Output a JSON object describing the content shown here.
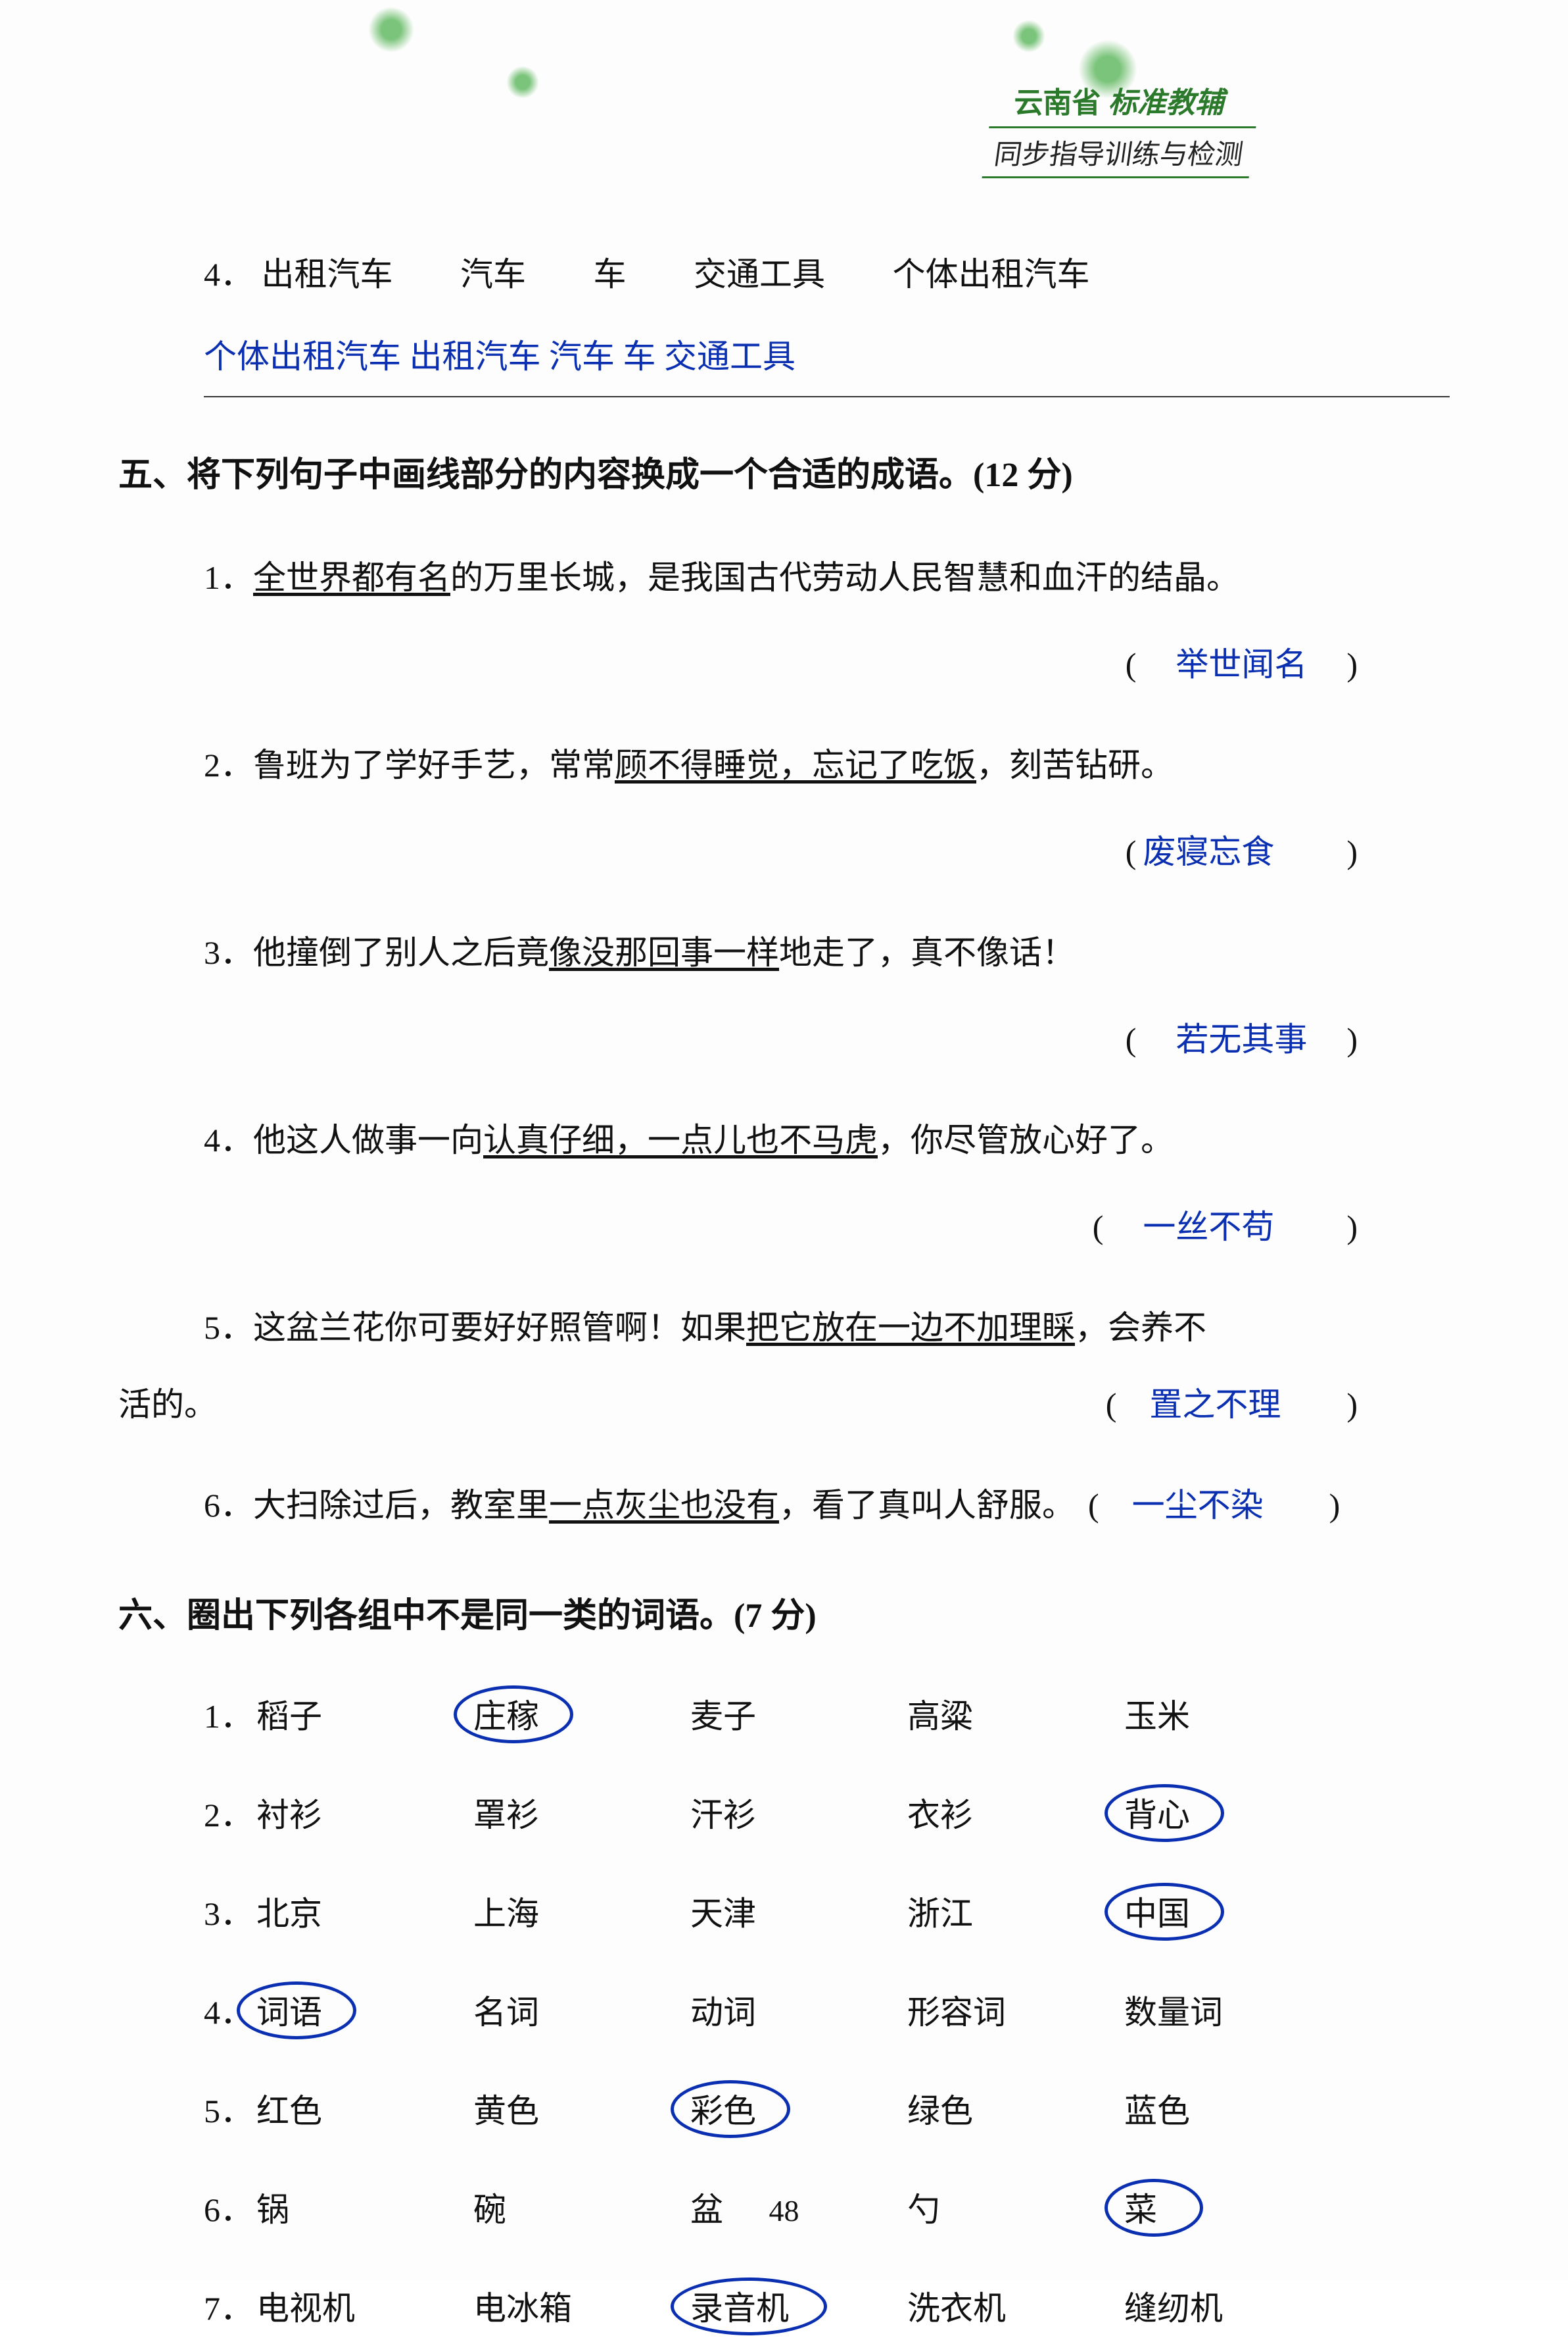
{
  "header": {
    "brand_green1": "云南省",
    "brand_green2": "标准教辅",
    "brand_sub": "同步指导训练与检测"
  },
  "q4": {
    "num": "4．",
    "words": [
      "出租汽车",
      "汽车",
      "车",
      "交通工具",
      "个体出租汽车"
    ],
    "answer": "个体出租汽车  出租汽车  汽车  车  交通工具"
  },
  "section5": {
    "title": "五、将下列句子中画线部分的内容换成一个合适的成语。(12 分)",
    "items": [
      {
        "num": "1．",
        "pre": "",
        "u": "全世界都有名",
        "post": "的万里长城，是我国古代劳动人民智慧和血汗的结晶。",
        "answer": "举世闻名"
      },
      {
        "num": "2．",
        "pre": "鲁班为了学好手艺，常常",
        "u": "顾不得睡觉，忘记了吃饭",
        "post": "，刻苦钻研。",
        "answer": "废寝忘食"
      },
      {
        "num": "3．",
        "pre": "他撞倒了别人之后竟",
        "u": "像没那回事一样",
        "post": "地走了，真不像话！",
        "answer": "若无其事"
      },
      {
        "num": "4．",
        "pre": "他这人做事一向",
        "u": "认真仔细，一点儿也不马虎",
        "post": "，你尽管放心好了。",
        "answer": "一丝不苟"
      },
      {
        "num": "5．",
        "pre": "这盆兰花你可要好好照管啊！如果",
        "u": "把它放在一边不加理睬",
        "post": "，会养不",
        "post2": "活的。",
        "answer": "置之不理"
      },
      {
        "num": "6．",
        "pre": "大扫除过后，教室里",
        "u": "一点灰尘也没有",
        "post": "，看了真叫人舒服。",
        "answer": "一尘不染"
      }
    ]
  },
  "section6": {
    "title": "六、圈出下列各组中不是同一类的词语。(7 分)",
    "rows": [
      {
        "num": "1．",
        "words": [
          "稻子",
          "庄稼",
          "麦子",
          "高粱",
          "玉米"
        ],
        "circled": 1
      },
      {
        "num": "2．",
        "words": [
          "衬衫",
          "罩衫",
          "汗衫",
          "衣衫",
          "背心"
        ],
        "circled": 4
      },
      {
        "num": "3．",
        "words": [
          "北京",
          "上海",
          "天津",
          "浙江",
          "中国"
        ],
        "circled": 4
      },
      {
        "num": "4．",
        "words": [
          "词语",
          "名词",
          "动词",
          "形容词",
          "数量词"
        ],
        "circled": 0
      },
      {
        "num": "5．",
        "words": [
          "红色",
          "黄色",
          "彩色",
          "绿色",
          "蓝色"
        ],
        "circled": 2
      },
      {
        "num": "6．",
        "words": [
          "锅",
          "碗",
          "盆",
          "勺",
          "菜"
        ],
        "circled": 4
      },
      {
        "num": "7．",
        "words": [
          "电视机",
          "电冰箱",
          "录音机",
          "洗衣机",
          "缝纫机"
        ],
        "circled": 2
      }
    ]
  },
  "page_num": "48",
  "colors": {
    "answer": "#0a2fb0",
    "green": "#2b7a2b",
    "text": "#111111"
  }
}
